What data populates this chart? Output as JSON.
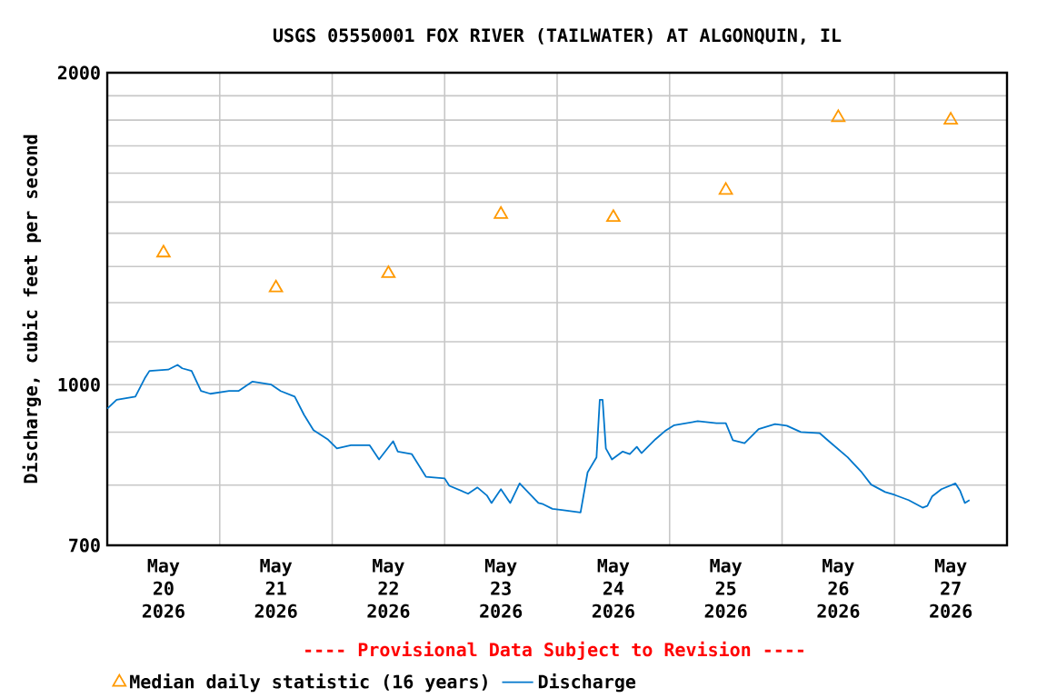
{
  "chart_data": {
    "type": "line",
    "title": "USGS 05550001 FOX RIVER (TAILWATER) AT ALGONQUIN, IL",
    "ylabel": "Discharge, cubic feet per second",
    "annotations": [
      "---- Provisional Data Subject to Revision ----"
    ],
    "xlim": [
      "2026-05-20T00:00",
      "2026-05-28T00:00"
    ],
    "xticks": [
      {
        "value": "2026-05-20T12:00",
        "label": "May 20 2026"
      },
      {
        "value": "2026-05-21T00:00",
        "label": null
      },
      {
        "value": "2026-05-21T12:00",
        "label": "May 21 2026"
      },
      {
        "value": "2026-05-22T00:00",
        "label": null
      },
      {
        "value": "2026-05-22T12:00",
        "label": "May 22 2026"
      },
      {
        "value": "2026-05-23T00:00",
        "label": null
      },
      {
        "value": "2026-05-23T12:00",
        "label": "May 23 2026"
      },
      {
        "value": "2026-05-24T00:00",
        "label": null
      },
      {
        "value": "2026-05-24T12:00",
        "label": "May 24 2026"
      },
      {
        "value": "2026-05-25T00:00",
        "label": null
      },
      {
        "value": "2026-05-25T12:00",
        "label": "May 25 2026"
      },
      {
        "value": "2026-05-26T00:00",
        "label": null
      },
      {
        "value": "2026-05-26T12:00",
        "label": "May 26 2026"
      },
      {
        "value": "2026-05-27T00:00",
        "label": null
      },
      {
        "value": "2026-05-27T12:00",
        "label": "May 27 2026"
      }
    ],
    "ylim": [
      700,
      2000
    ],
    "yticks": [
      700,
      {
        "value": 800,
        "label": null
      },
      {
        "value": 900,
        "label": null
      },
      1000,
      {
        "value": 1100,
        "label": null
      },
      {
        "value": 1200,
        "label": null
      },
      {
        "value": 1300,
        "label": null
      },
      {
        "value": 1400,
        "label": null
      },
      {
        "value": 1500,
        "label": null
      },
      {
        "value": 1600,
        "label": null
      },
      {
        "value": 1700,
        "label": null
      },
      {
        "value": 1800,
        "label": null
      },
      {
        "value": 1900,
        "label": null
      },
      2000
    ],
    "log": "y",
    "grid": true,
    "legend": "bottom",
    "series": [
      {
        "name": "Median daily statistic (16 years)",
        "type": "scatter",
        "marker": "triangle",
        "color": "#ff9900",
        "x": [
          "2026-05-20T12:00",
          "2026-05-21T12:00",
          "2026-05-22T12:00",
          "2026-05-23T12:00",
          "2026-05-24T12:00",
          "2026-05-25T12:00",
          "2026-05-26T12:00",
          "2026-05-27T12:00"
        ],
        "values": [
          1340,
          1240,
          1280,
          1460,
          1450,
          1540,
          1810,
          1800
        ]
      },
      {
        "name": "Discharge",
        "marker": "none",
        "color": "#0077cc",
        "x": [
          "2026-05-20T00:00",
          "2026-05-20T02:00",
          "2026-05-20T06:00",
          "2026-05-20T08:00",
          "2026-05-20T09:00",
          "2026-05-20T13:00",
          "2026-05-20T15:00",
          "2026-05-20T16:00",
          "2026-05-20T18:00",
          "2026-05-20T20:00",
          "2026-05-20T22:00",
          "2026-05-21T02:00",
          "2026-05-21T04:00",
          "2026-05-21T07:00",
          "2026-05-21T11:00",
          "2026-05-21T13:00",
          "2026-05-21T16:00",
          "2026-05-21T18:00",
          "2026-05-21T20:00",
          "2026-05-21T23:00",
          "2026-05-22T01:00",
          "2026-05-22T04:00",
          "2026-05-22T08:00",
          "2026-05-22T10:00",
          "2026-05-22T13:00",
          "2026-05-22T14:00",
          "2026-05-22T17:00",
          "2026-05-22T20:00",
          "2026-05-23T00:00",
          "2026-05-23T01:00",
          "2026-05-23T05:00",
          "2026-05-23T07:00",
          "2026-05-23T09:00",
          "2026-05-23T10:00",
          "2026-05-23T12:00",
          "2026-05-23T14:00",
          "2026-05-23T16:00",
          "2026-05-23T20:00",
          "2026-05-23T21:00",
          "2026-05-23T23:00",
          "2026-05-24T01:00",
          "2026-05-24T05:00",
          "2026-05-24T06:30",
          "2026-05-24T08:24",
          "2026-05-24T09:06",
          "2026-05-24T09:42",
          "2026-05-24T10:24",
          "2026-05-24T11:42",
          "2026-05-24T14:00",
          "2026-05-24T15:30",
          "2026-05-24T17:00",
          "2026-05-24T18:00",
          "2026-05-24T21:00",
          "2026-05-24T23:00",
          "2026-05-25T01:00",
          "2026-05-25T06:00",
          "2026-05-25T10:00",
          "2026-05-25T12:00",
          "2026-05-25T13:30",
          "2026-05-25T16:00",
          "2026-05-25T19:00",
          "2026-05-25T22:30",
          "2026-05-26T01:00",
          "2026-05-26T04:00",
          "2026-05-26T08:00",
          "2026-05-26T10:00",
          "2026-05-26T14:00",
          "2026-05-26T17:00",
          "2026-05-26T19:00",
          "2026-05-26T22:00",
          "2026-05-27T00:00",
          "2026-05-27T03:00",
          "2026-05-27T06:00",
          "2026-05-27T07:00",
          "2026-05-27T08:00",
          "2026-05-27T10:00",
          "2026-05-27T13:00",
          "2026-05-27T14:00",
          "2026-05-27T15:00",
          "2026-05-27T16:00"
        ],
        "values": [
          948,
          967,
          974,
          1014,
          1031,
          1034,
          1045,
          1037,
          1031,
          986,
          980,
          986,
          986,
          1007,
          1000,
          986,
          974,
          935,
          904,
          886,
          868,
          874,
          874,
          847,
          882,
          862,
          857,
          815,
          812,
          799,
          785,
          796,
          782,
          769,
          793,
          769,
          803,
          769,
          767,
          759,
          757,
          753,
          823,
          851,
          967,
          967,
          868,
          847,
          862,
          857,
          871,
          859,
          886,
          902,
          914,
          922,
          918,
          918,
          884,
          878,
          906,
          916,
          913,
          900,
          898,
          882,
          851,
          823,
          801,
          788,
          783,
          774,
          761,
          764,
          780,
          793,
          803,
          790,
          769,
          774
        ]
      }
    ]
  }
}
